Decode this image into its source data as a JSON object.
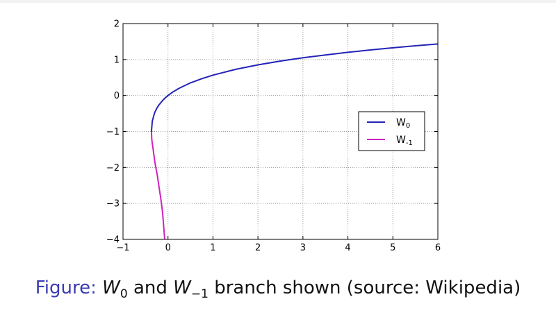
{
  "chart_data": {
    "type": "line",
    "xlim": [
      -1,
      6
    ],
    "ylim": [
      -4,
      2
    ],
    "xticks": [
      "−1",
      "0",
      "1",
      "2",
      "3",
      "4",
      "5",
      "6"
    ],
    "yticks": [
      "2",
      "1",
      "0",
      "−1",
      "−2",
      "−3",
      "−4"
    ],
    "grid": true,
    "legend_position": "right",
    "series": [
      {
        "name": "W0",
        "label_base": "W",
        "label_sub": "0",
        "color": "#2323b8",
        "x": [
          -0.3679,
          -0.35,
          -0.3,
          -0.25,
          -0.2,
          -0.15,
          -0.1,
          -0.05,
          0,
          0.1,
          0.25,
          0.5,
          0.75,
          1,
          1.5,
          2,
          2.5,
          3,
          3.5,
          4,
          4.5,
          5,
          5.5,
          6
        ],
        "y": [
          -1,
          -0.716,
          -0.489,
          -0.357,
          -0.259,
          -0.183,
          -0.112,
          -0.053,
          0,
          0.091,
          0.204,
          0.352,
          0.468,
          0.567,
          0.726,
          0.853,
          0.959,
          1.049,
          1.128,
          1.202,
          1.267,
          1.327,
          1.382,
          1.432
        ]
      },
      {
        "name": "W-1",
        "label_base": "W",
        "label_sub": "-1",
        "color": "#d020c0",
        "x": [
          -0.3679,
          -0.36,
          -0.35,
          -0.33,
          -0.3,
          -0.27,
          -0.24,
          -0.2,
          -0.16,
          -0.12,
          -0.0733
        ],
        "y": [
          -1,
          -1.22,
          -1.33,
          -1.5,
          -1.78,
          -2.0,
          -2.2,
          -2.54,
          -2.87,
          -3.25,
          -4
        ]
      }
    ]
  },
  "caption": {
    "label": "Figure:",
    "w0_base": "W",
    "w0_sub": "0",
    "and": "and",
    "w1_base": "W",
    "w1_sub": "−1",
    "rest": "branch shown (source: Wikipedia)"
  }
}
